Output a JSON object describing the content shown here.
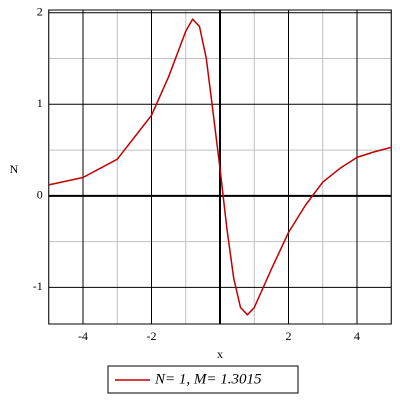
{
  "chart_data": {
    "type": "line",
    "x_label": "x",
    "y_label": "N",
    "xlim": [
      -5,
      5
    ],
    "ylim": [
      -1.4,
      2.03
    ],
    "xticks": [
      -4,
      -2,
      2,
      4
    ],
    "yticks": [
      -1,
      0,
      1,
      2
    ],
    "minor_xticks": [
      -5,
      -3,
      -1,
      1,
      3,
      5
    ],
    "minor_yticks": [
      -0.5,
      0.5,
      1.5
    ],
    "grid": true,
    "x": [
      -5,
      -4,
      -3,
      -2,
      -1.5,
      -1,
      -0.8,
      -0.6,
      -0.4,
      -0.2,
      0,
      0.2,
      0.4,
      0.6,
      0.8,
      1,
      1.5,
      2,
      2.5,
      3,
      3.5,
      4,
      4.5,
      5
    ],
    "series": [
      {
        "name": "N= 1, M= 1.3015",
        "color": "#c00000",
        "values": [
          0.12,
          0.2,
          0.4,
          0.88,
          1.3,
          1.8,
          1.93,
          1.85,
          1.5,
          0.9,
          0.3,
          -0.35,
          -0.9,
          -1.22,
          -1.3,
          -1.22,
          -0.8,
          -0.4,
          -0.1,
          0.15,
          0.3,
          0.42,
          0.48,
          0.53
        ]
      }
    ]
  }
}
